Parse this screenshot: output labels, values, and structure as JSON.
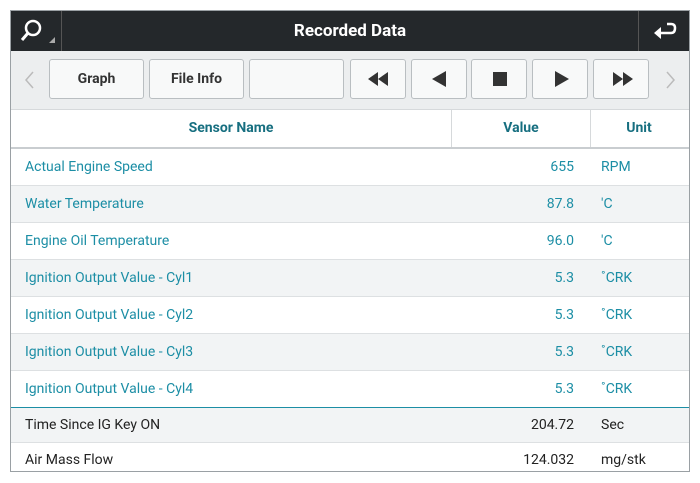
{
  "header": {
    "title": "Recorded Data"
  },
  "toolbar": {
    "buttons": [
      "Graph",
      "File Info"
    ]
  },
  "table": {
    "columns": [
      "Sensor Name",
      "Value",
      "Unit"
    ],
    "rows": [
      [
        "Actual Engine Speed",
        "655",
        "RPM"
      ],
      [
        "Water Temperature",
        "87.8",
        "'C"
      ],
      [
        "Engine Oil Temperature",
        "96.0",
        "'C"
      ],
      [
        "Ignition Output Value - Cyl1",
        "5.3",
        "˚CRK"
      ],
      [
        "Ignition Output Value - Cyl2",
        "5.3",
        "˚CRK"
      ],
      [
        "Ignition Output Value - Cyl3",
        "5.3",
        "˚CRK"
      ],
      [
        "Ignition Output Value - Cyl4",
        "5.3",
        "˚CRK"
      ],
      [
        "Time Since IG Key ON",
        "204.72",
        "Sec"
      ],
      [
        "Air Mass Flow",
        "124.032",
        "mg/stk"
      ]
    ]
  }
}
